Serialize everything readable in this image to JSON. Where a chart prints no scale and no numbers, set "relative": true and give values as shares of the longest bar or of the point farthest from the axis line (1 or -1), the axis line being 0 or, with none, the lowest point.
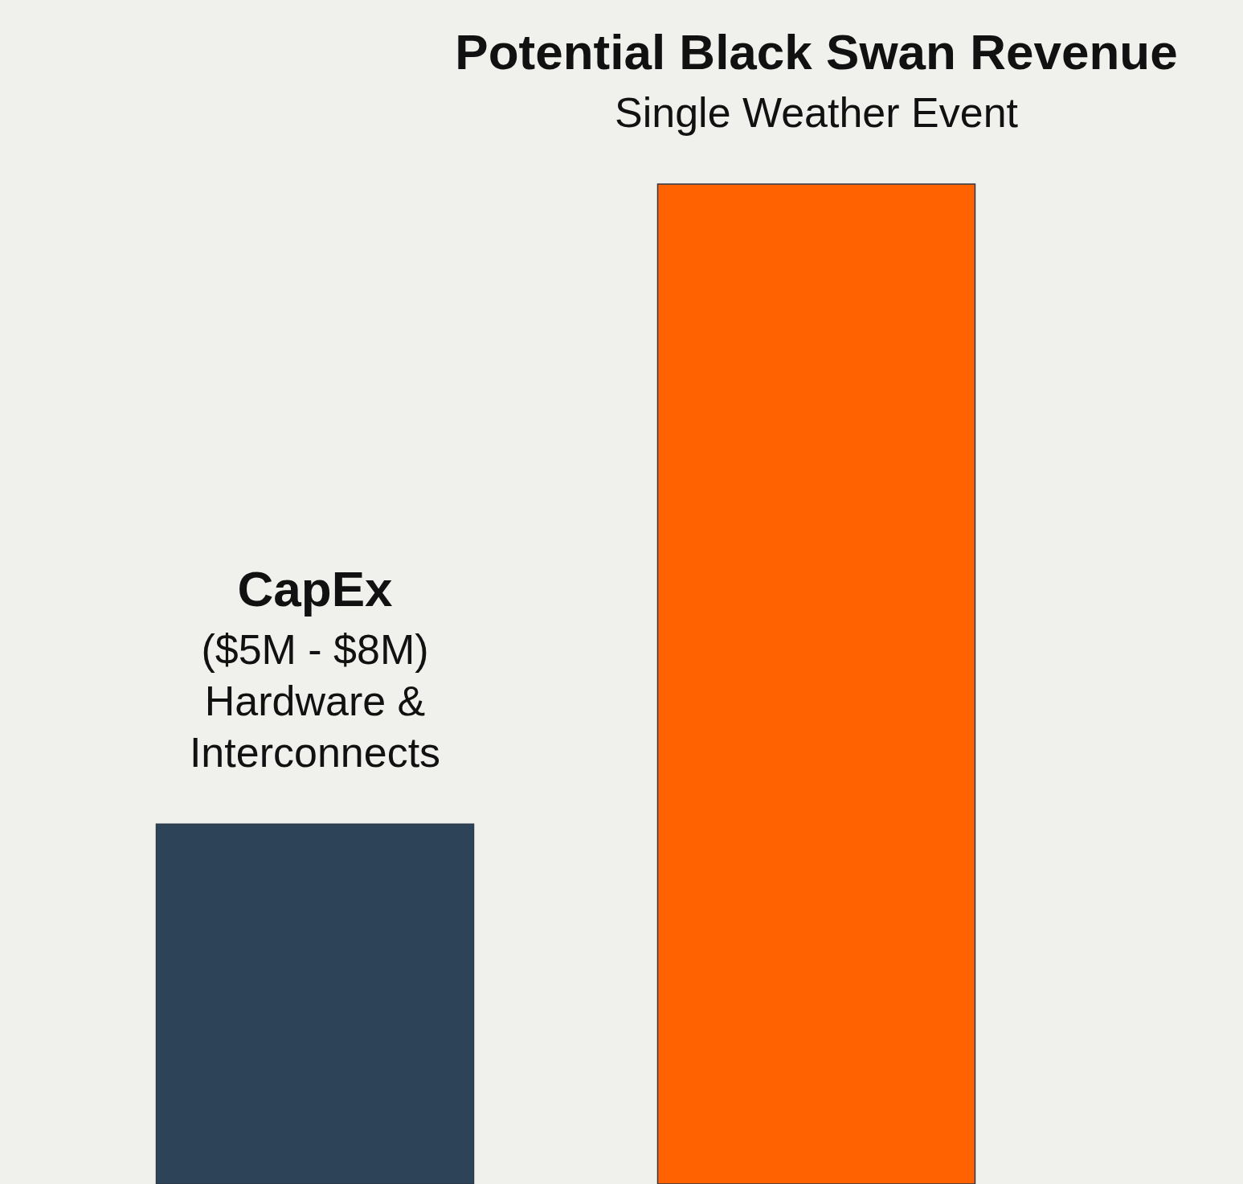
{
  "chart_data": {
    "type": "bar",
    "relative": true,
    "categories": [
      "CapEx",
      "Potential Black Swan Revenue"
    ],
    "values": [
      0.36,
      1
    ],
    "colors": [
      "#2c4358",
      "#ff6200"
    ],
    "annotations": [
      "($5M - $8M)",
      "Hardware &\nInterconnects",
      "Single Weather Event"
    ]
  }
}
